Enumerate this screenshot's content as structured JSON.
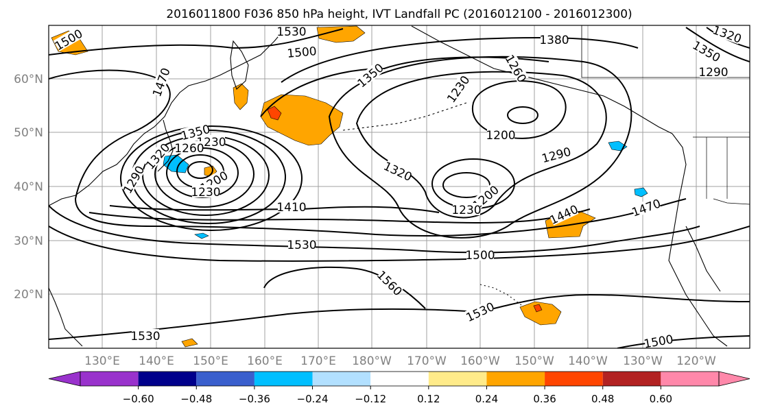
{
  "title": "2016011800 F036 850 hPa height, IVT Landfall PC (2016012100 - 2016012300)",
  "map": {
    "lon_labels": [
      "130°E",
      "140°E",
      "150°E",
      "160°E",
      "170°E",
      "180°W",
      "170°W",
      "160°W",
      "150°W",
      "140°W",
      "130°W",
      "120°W"
    ],
    "lat_labels": [
      "20°N",
      "30°N",
      "40°N",
      "50°N",
      "60°N"
    ],
    "contour_labels": [
      "1500",
      "1530",
      "1500",
      "1380",
      "1350",
      "1470",
      "1230",
      "1260",
      "1230",
      "1200",
      "1350",
      "1320",
      "1260",
      "1290",
      "1290",
      "1320",
      "1200",
      "1200",
      "1230",
      "1230",
      "1410",
      "1440",
      "1470",
      "1530",
      "1500",
      "1560",
      "1530",
      "1530",
      "1500",
      "1320",
      "1350",
      "1290"
    ],
    "shading_colors": {
      "positive_light": "#ffeb8a",
      "positive_mid": "#ffa500",
      "positive_strong": "#ff4500",
      "negative_mid": "#00bfff",
      "negative_light": "#b2e0ff"
    }
  },
  "colorbar": {
    "tick_labels": [
      "−0.60",
      "−0.48",
      "−0.36",
      "−0.24",
      "−0.12",
      "0.12",
      "0.24",
      "0.36",
      "0.48",
      "0.60"
    ],
    "colors": [
      "#9932cc",
      "#00008b",
      "#3a5fcd",
      "#00bfff",
      "#b2e0ff",
      "#ffffff",
      "#ffeb8a",
      "#ffa500",
      "#ff4500",
      "#b22222",
      "#ff88aa"
    ],
    "underflow_color": "#9932cc",
    "overflow_color": "#ff88aa"
  }
}
